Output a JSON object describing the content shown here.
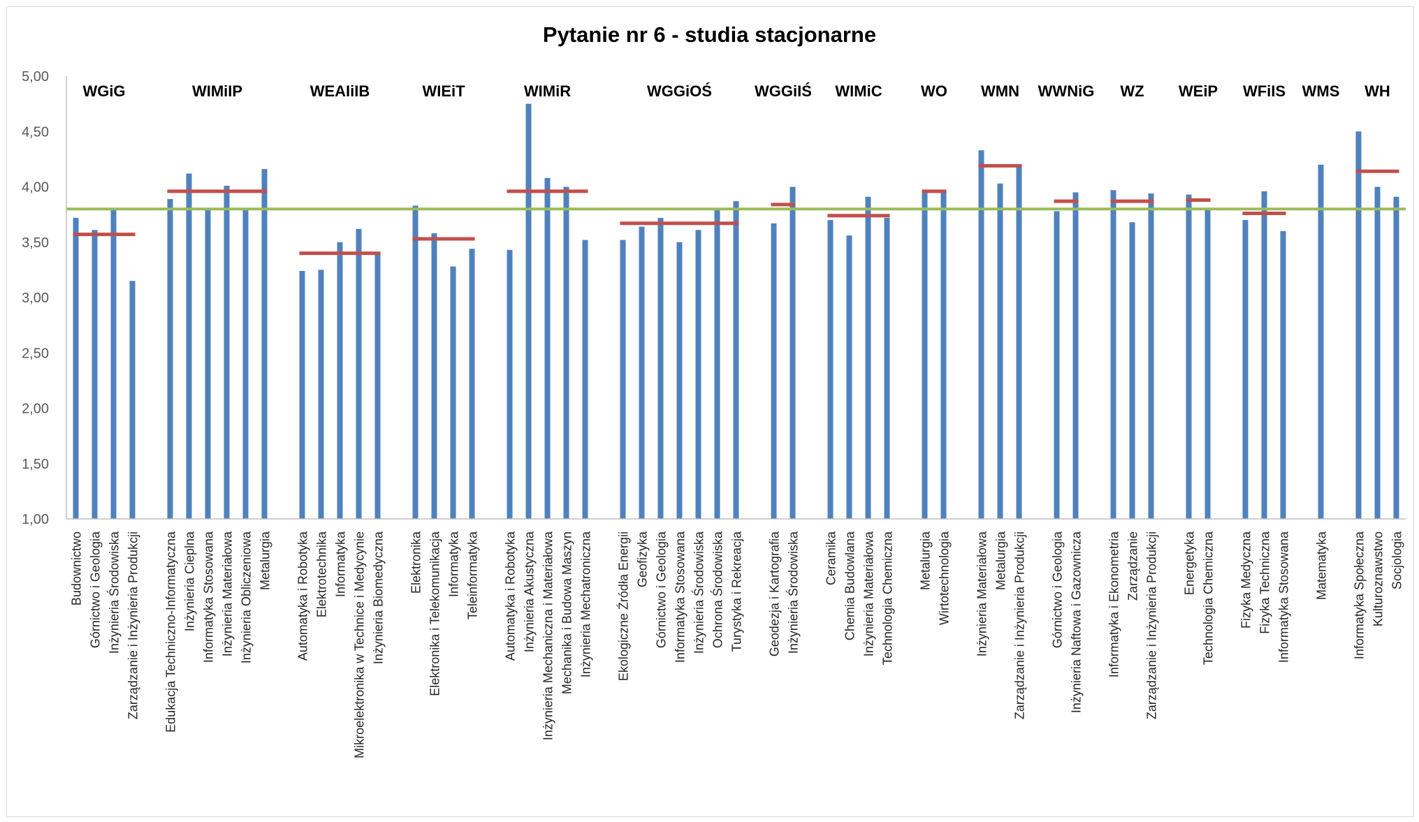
{
  "chart_data": {
    "type": "bar",
    "title": "Pytanie nr 6 - studia stacjonarne",
    "ylim": [
      1.0,
      5.0
    ],
    "yticks": [
      "1,00",
      "1,50",
      "2,00",
      "2,50",
      "3,00",
      "3,50",
      "4,00",
      "4,50",
      "5,00"
    ],
    "grid": false,
    "colors": {
      "bar": "#4f81bd",
      "faculty_mean": "#c0504d",
      "overall_mean": "#9bbb59",
      "axis": "#bfbfbf"
    },
    "overall_mean": 3.8,
    "groups": [
      {
        "name": "WGiG",
        "mean": 3.57,
        "categories": [
          "Budownictwo",
          "Górnictwo i Geologia",
          "Inżynieria Środowiska",
          "Zarządzanie i Inżynieria Produkcji"
        ],
        "values": [
          3.72,
          3.61,
          3.8,
          3.15
        ]
      },
      {
        "name": "WIMiIP",
        "mean": 3.96,
        "categories": [
          "Edukacja Techniczno-Informatyczna",
          "Inżynieria Cieplna",
          "Informatyka Stosowana",
          "Inżynieria Materiałowa",
          "Inżynieria Obliczeniowa",
          "Metalurgia"
        ],
        "values": [
          3.89,
          4.12,
          3.8,
          4.01,
          3.8,
          4.16
        ]
      },
      {
        "name": "WEAIiIB",
        "mean": 3.4,
        "categories": [
          "Automatyka i Robotyka",
          "Elektrotechnika",
          "Informatyka",
          "Mikroelektronika w Technice i Medycynie",
          "Inżynieria Biomedyczna"
        ],
        "values": [
          3.24,
          3.25,
          3.5,
          3.62,
          3.4
        ]
      },
      {
        "name": "WIEiT",
        "mean": 3.53,
        "categories": [
          "Elektronika",
          "Elektronika i Telekomunikacja",
          "Informatyka",
          "Teleinformatyka"
        ],
        "values": [
          3.83,
          3.58,
          3.28,
          3.44
        ]
      },
      {
        "name": "WIMiR",
        "mean": 3.96,
        "categories": [
          "Automatyka i Robotyka",
          "Inżynieria Akustyczna",
          "Inżynieria Mechaniczna i Materiałowa",
          "Mechanika i Budowa Maszyn",
          "Inżynieria Mechatroniczna"
        ],
        "values": [
          3.43,
          4.75,
          4.08,
          4.0,
          3.52
        ]
      },
      {
        "name": "WGGiOŚ",
        "mean": 3.67,
        "categories": [
          "Ekologiczne Źródła Energii",
          "Geofizyka",
          "Górnictwo i Geologia",
          "Informatyka Stosowana",
          "Inżynieria Środowiska",
          "Ochrona Środowiska",
          "Turystyka i Rekreacja"
        ],
        "values": [
          3.52,
          3.64,
          3.72,
          3.5,
          3.61,
          3.8,
          3.87
        ]
      },
      {
        "name": "WGGiIŚ",
        "mean": 3.84,
        "categories": [
          "Geodezja i Kartografia",
          "Inżynieria Środowiska"
        ],
        "values": [
          3.67,
          4.0
        ]
      },
      {
        "name": "WIMiC",
        "mean": 3.74,
        "categories": [
          "Ceramika",
          "Chemia Budowlana",
          "Inżynieria Materiałowa",
          "Technologia Chemiczna"
        ],
        "values": [
          3.7,
          3.56,
          3.91,
          3.72
        ]
      },
      {
        "name": "WO",
        "mean": 3.96,
        "categories": [
          "Metalurgia",
          "Wirtotechnologia"
        ],
        "values": [
          3.95,
          3.97
        ]
      },
      {
        "name": "WMN",
        "mean": 4.19,
        "categories": [
          "Inżynieria Materiałowa",
          "Metalurgia",
          "Zarządzanie i Inżynieria Produkcji"
        ],
        "values": [
          4.33,
          4.03,
          4.19
        ]
      },
      {
        "name": "WWNiG",
        "mean": 3.87,
        "categories": [
          "Górnictwo i Geologia",
          "Inżynieria Naftowa i Gazownicza"
        ],
        "values": [
          3.78,
          3.95
        ]
      },
      {
        "name": "WZ",
        "mean": 3.87,
        "categories": [
          "Informatyka i Ekonometria",
          "Zarządzanie",
          "Zarządzanie i Inżynieria Produkcji"
        ],
        "values": [
          3.97,
          3.68,
          3.94
        ]
      },
      {
        "name": "WEiP",
        "mean": 3.88,
        "categories": [
          "Energetyka",
          "Technologia Chemiczna"
        ],
        "values": [
          3.93,
          3.8
        ]
      },
      {
        "name": "WFiIS",
        "mean": 3.76,
        "categories": [
          "Fizyka Medyczna",
          "Fizyka Techniczna",
          "Informatyka Stosowana"
        ],
        "values": [
          3.7,
          3.96,
          3.6
        ]
      },
      {
        "name": "WMS",
        "categories": [
          "Matematyka"
        ],
        "values": [
          4.2
        ]
      },
      {
        "name": "WH",
        "mean": 4.14,
        "categories": [
          "Informatyka Społeczna",
          "Kulturoznawstwo",
          "Socjologia"
        ],
        "values": [
          4.5,
          4.0,
          3.91
        ]
      }
    ]
  }
}
